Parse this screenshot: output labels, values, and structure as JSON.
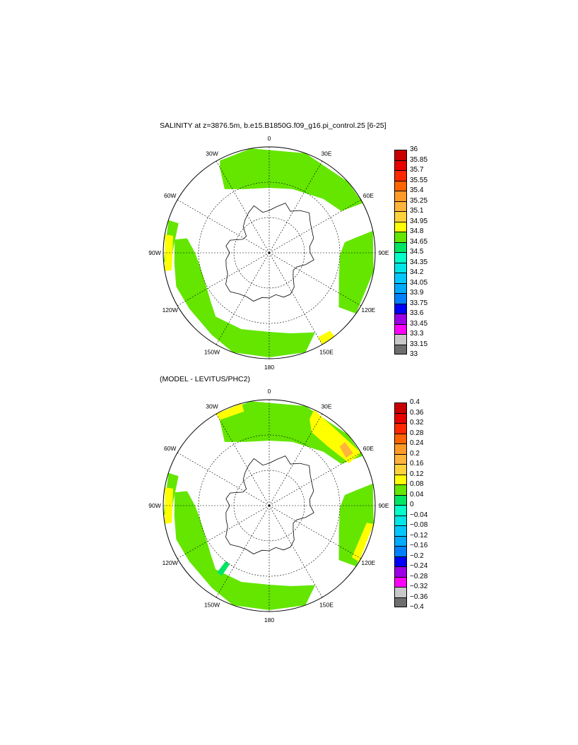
{
  "panel1": {
    "title": "SALINITY at z=3876.5m, b.e15.B1850G.f09_g16.pi_control.25 [6-25]",
    "lon_labels": [
      "0",
      "30E",
      "60E",
      "90E",
      "120E",
      "150E",
      "180",
      "150W",
      "120W",
      "90W",
      "60W",
      "30W"
    ],
    "colorbar": {
      "ticks": [
        "36",
        "35.85",
        "35.7",
        "35.55",
        "35.4",
        "35.25",
        "35.1",
        "34.95",
        "34.8",
        "34.65",
        "34.5",
        "34.35",
        "34.2",
        "34.05",
        "33.9",
        "33.75",
        "33.6",
        "33.45",
        "33.3",
        "33.15",
        "33"
      ],
      "colors": [
        "#c80000",
        "#e60000",
        "#ff2800",
        "#ff6400",
        "#ff9a28",
        "#ffb43c",
        "#ffd23c",
        "#ffff00",
        "#64e600",
        "#00e664",
        "#00ffc8",
        "#00e6e6",
        "#00c8ff",
        "#00aaff",
        "#0080ff",
        "#0000ff",
        "#9b00e6",
        "#ff00ff",
        "#c8c8c8",
        "#6e6e6e"
      ]
    }
  },
  "panel2": {
    "title": "(MODEL - LEVITUS/PHC2)",
    "lon_labels": [
      "0",
      "30E",
      "60E",
      "90E",
      "120E",
      "150E",
      "180",
      "150W",
      "120W",
      "90W",
      "60W",
      "30W"
    ],
    "colorbar": {
      "ticks": [
        "0.4",
        "0.36",
        "0.32",
        "0.28",
        "0.24",
        "0.2",
        "0.16",
        "0.12",
        "0.08",
        "0.04",
        "0",
        "−0.04",
        "−0.08",
        "−0.12",
        "−0.16",
        "−0.2",
        "−0.24",
        "−0.28",
        "−0.32",
        "−0.36",
        "−0.4"
      ],
      "colors": [
        "#c80000",
        "#e60000",
        "#ff2800",
        "#ff6400",
        "#ff9a28",
        "#ffb43c",
        "#ffd23c",
        "#ffff00",
        "#64e600",
        "#00e664",
        "#00ffc8",
        "#00e6e6",
        "#00c8ff",
        "#00aaff",
        "#0080ff",
        "#0000ff",
        "#9b00e6",
        "#ff00ff",
        "#c8c8c8",
        "#6e6e6e"
      ]
    }
  }
}
